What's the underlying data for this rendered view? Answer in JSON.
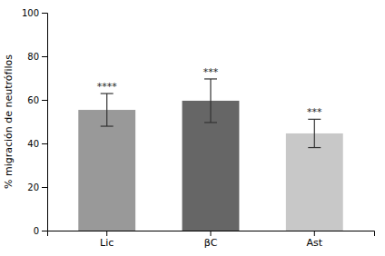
{
  "chart_data": {
    "type": "bar",
    "categories": [
      "Lic",
      "βC",
      "Ast"
    ],
    "values": [
      55.4,
      59.6,
      44.6
    ],
    "errors": [
      7.5,
      10.0,
      6.5
    ],
    "colors": [
      "#999999",
      "#666666",
      "#c8c8c8"
    ],
    "annotations": [
      "****",
      "***",
      "***"
    ],
    "ylabel": "% migración de neutrófilos",
    "ylim": [
      0,
      100
    ],
    "yticks": [
      0,
      20,
      40,
      60,
      80,
      100
    ],
    "grid": false
  }
}
